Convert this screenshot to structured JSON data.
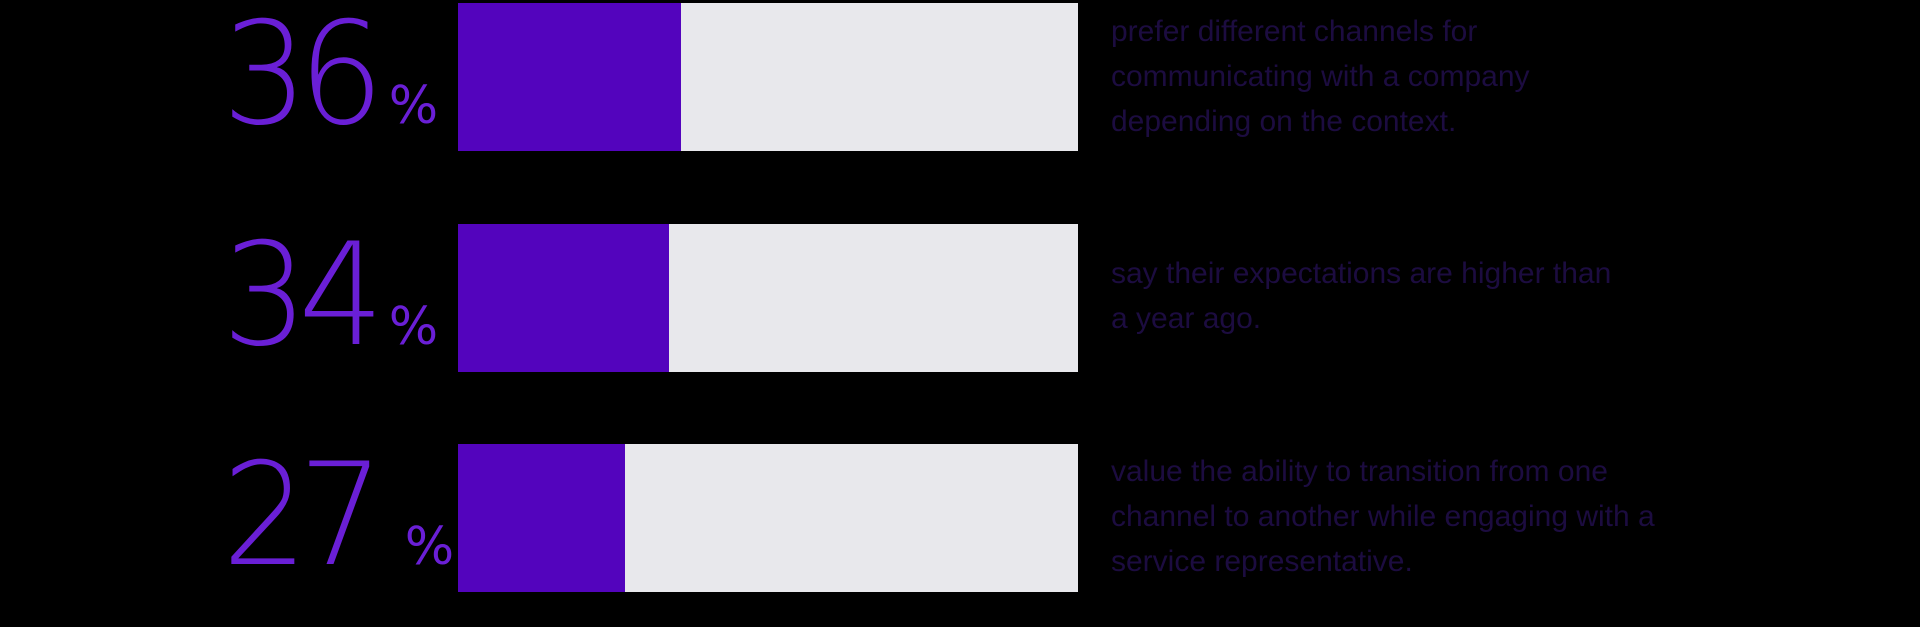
{
  "chart_data": {
    "type": "bar",
    "orientation": "horizontal",
    "xlim": [
      0,
      100
    ],
    "colors": {
      "fill": "#5304bd",
      "track": "#e8e8ec",
      "number": "#6a1fd6",
      "text": "#1c0c40",
      "background": "#000000"
    },
    "rows": [
      {
        "value": 36,
        "value_label": "36",
        "unit": "%",
        "description": "prefer different channels for communicating with a company depending on the context."
      },
      {
        "value": 34,
        "value_label": "34",
        "unit": "%",
        "description": "say their expectations are higher than a year ago."
      },
      {
        "value": 27,
        "value_label": "27",
        "unit": "%",
        "description": "value the ability to transition from one channel to another while engaging with a service representative."
      }
    ]
  }
}
